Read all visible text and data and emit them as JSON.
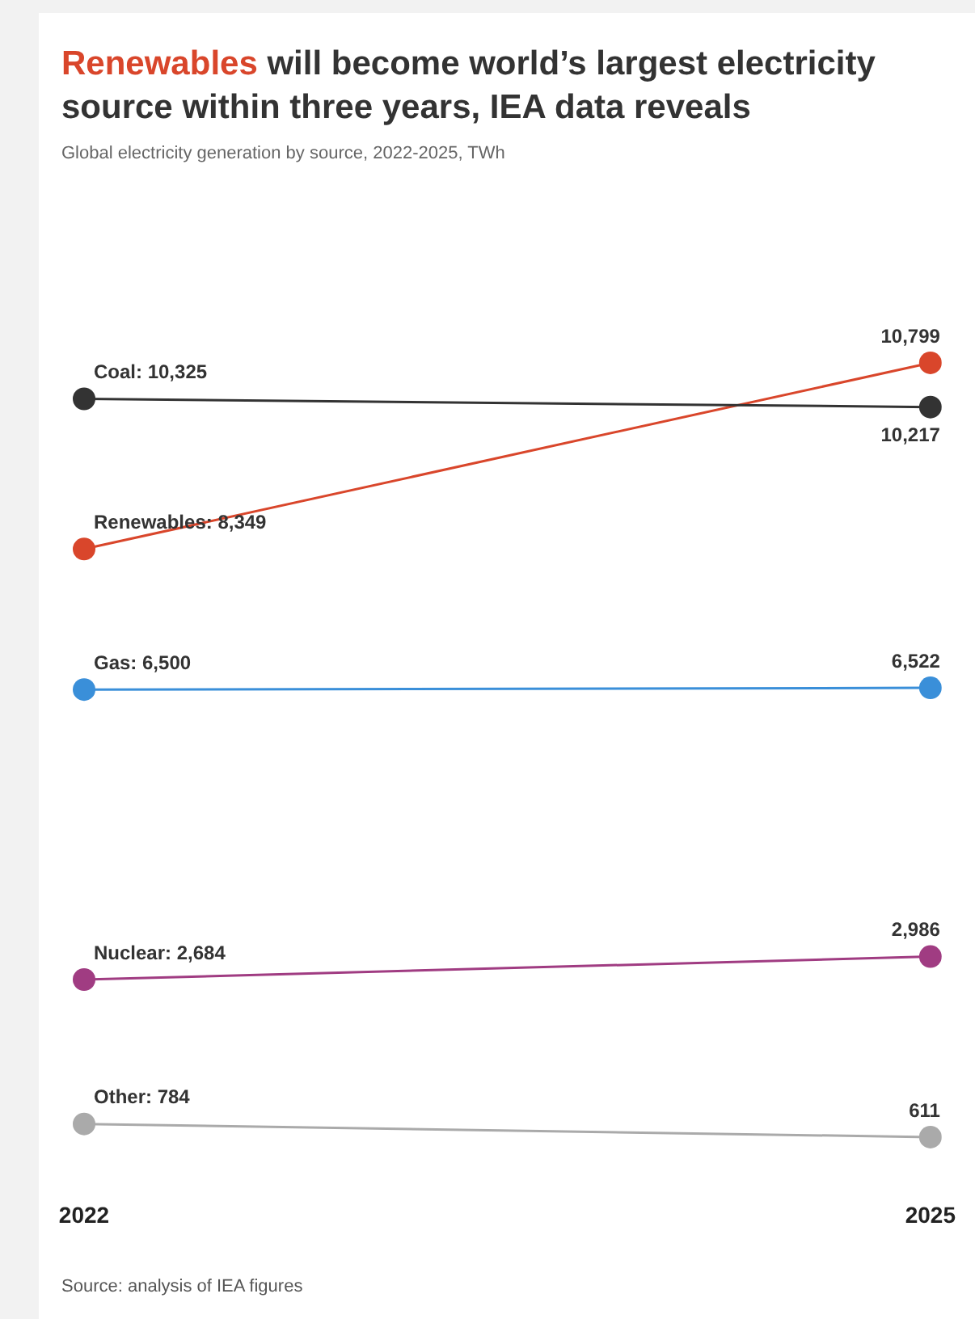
{
  "chart_data": {
    "type": "line",
    "title": "Renewables will become world’s largest electricity source within three years, IEA data reveals",
    "subtitle": "Global electricity generation by source, 2022-2025, TWh",
    "categories": [
      "2022",
      "2025"
    ],
    "series": [
      {
        "color": "#333333",
        "values": [
          10325,
          10217
        ],
        "value_labels": [
          "Coal: 10,325",
          "10,217"
        ]
      },
      {
        "color": "#d9462b",
        "values": [
          8349,
          10799
        ],
        "value_labels": [
          "Renewables: 8,349",
          "10,799"
        ]
      },
      {
        "color": "#3a8fd9",
        "values": [
          6500,
          6522
        ],
        "value_labels": [
          "Gas: 6,500",
          "6,522"
        ]
      },
      {
        "color": "#a03c82",
        "values": [
          2684,
          2986
        ],
        "value_labels": [
          "Nuclear: 2,684",
          "2,986"
        ]
      },
      {
        "color": "#aaaaaa",
        "values": [
          784,
          611
        ],
        "value_labels": [
          "Other: 784",
          "611"
        ]
      }
    ],
    "tick_labels": "x",
    "grid": false,
    "legend": false,
    "marker": "circle",
    "line_style": "solid",
    "annotations": [
      "Source: analysis of IEA figures"
    ]
  }
}
